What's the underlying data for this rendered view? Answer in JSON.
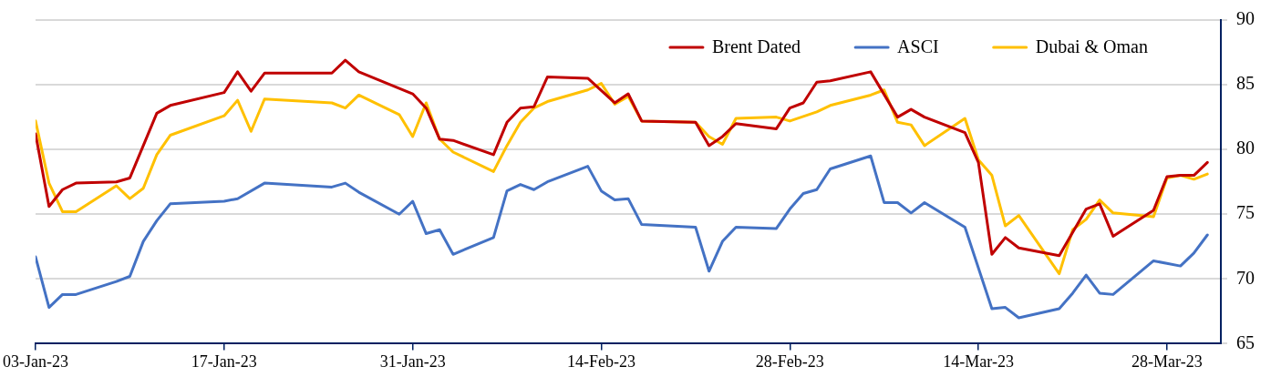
{
  "chart_data": {
    "type": "line",
    "xlim": [
      "--01-03",
      "--04-01"
    ],
    "xticks": [
      {
        "value": "--01-03",
        "label": "03-Jan-23"
      },
      {
        "value": "--01-17",
        "label": "17-Jan-23"
      },
      {
        "value": "--01-31",
        "label": "31-Jan-23"
      },
      {
        "value": "--02-14",
        "label": "14-Feb-23"
      },
      {
        "value": "--02-28",
        "label": "28-Feb-23"
      },
      {
        "value": "--03-14",
        "label": "14-Mar-23"
      },
      {
        "value": "--03-28",
        "label": "28-Mar-23"
      }
    ],
    "ylim": [
      65,
      90
    ],
    "yticks": [
      65,
      70,
      75,
      80,
      85,
      90
    ],
    "grid": "y",
    "legend": "top right",
    "marker": "none",
    "line_style": "solid",
    "series": [
      {
        "name": "Brent Dated",
        "color": "#c00000",
        "x": [
          "--01-03",
          "--01-04",
          "--01-05",
          "--01-06",
          "--01-09",
          "--01-10",
          "--01-12",
          "--01-13",
          "--01-17",
          "--01-18",
          "--01-19",
          "--01-20",
          "--01-25",
          "--01-26",
          "--01-27",
          "--01-31",
          "--02-01",
          "--02-02",
          "--02-03",
          "--02-06",
          "--02-07",
          "--02-08",
          "--02-09",
          "--02-10",
          "--02-13",
          "--02-15",
          "--02-16",
          "--02-17",
          "--02-21",
          "--02-22",
          "--02-23",
          "--02-24",
          "--02-27",
          "--02-28",
          "--03-01",
          "--03-02",
          "--03-03",
          "--03-06",
          "--03-08",
          "--03-09",
          "--03-10",
          "--03-13",
          "--03-14",
          "--03-15",
          "--03-16",
          "--03-17",
          "--03-20",
          "--03-22",
          "--03-23",
          "--03-24",
          "--03-27",
          "--03-28",
          "--03-29",
          "--03-30",
          "--03-31"
        ],
        "values": [
          81.2,
          75.6,
          76.9,
          77.4,
          77.5,
          77.8,
          82.8,
          83.4,
          84.4,
          86.0,
          84.5,
          85.9,
          85.9,
          86.9,
          86.0,
          84.3,
          83.2,
          80.8,
          80.7,
          79.6,
          82.1,
          83.2,
          83.3,
          85.6,
          85.5,
          83.6,
          84.3,
          82.2,
          82.1,
          80.3,
          81.0,
          82.0,
          81.6,
          83.2,
          83.6,
          85.2,
          85.3,
          86.0,
          82.5,
          83.1,
          82.5,
          81.3,
          79.0,
          71.9,
          73.2,
          72.4,
          71.8,
          75.4,
          75.8,
          73.3,
          75.3,
          77.9,
          78.0,
          78.0,
          79.0
        ]
      },
      {
        "name": "ASCI",
        "color": "#4472c4",
        "x": [
          "--01-03",
          "--01-04",
          "--01-05",
          "--01-06",
          "--01-09",
          "--01-10",
          "--01-11",
          "--01-12",
          "--01-13",
          "--01-17",
          "--01-18",
          "--01-20",
          "--01-25",
          "--01-26",
          "--01-27",
          "--01-30",
          "--01-31",
          "--02-01",
          "--02-02",
          "--02-03",
          "--02-06",
          "--02-07",
          "--02-08",
          "--02-09",
          "--02-10",
          "--02-13",
          "--02-14",
          "--02-15",
          "--02-16",
          "--02-17",
          "--02-21",
          "--02-22",
          "--02-23",
          "--02-24",
          "--02-27",
          "--02-28",
          "--03-01",
          "--03-02",
          "--03-03",
          "--03-06",
          "--03-07",
          "--03-08",
          "--03-09",
          "--03-10",
          "--03-13",
          "--03-15",
          "--03-16",
          "--03-17",
          "--03-20",
          "--03-21",
          "--03-22",
          "--03-23",
          "--03-24",
          "--03-27",
          "--03-28",
          "--03-29",
          "--03-30",
          "--03-31"
        ],
        "values": [
          71.7,
          67.8,
          68.8,
          68.8,
          69.8,
          70.2,
          72.9,
          74.5,
          75.8,
          76.0,
          76.2,
          77.4,
          77.1,
          77.4,
          76.7,
          75.0,
          76.0,
          73.5,
          73.8,
          71.9,
          73.2,
          76.8,
          77.3,
          76.9,
          77.5,
          78.7,
          76.8,
          76.1,
          76.2,
          74.2,
          74.0,
          70.6,
          72.9,
          74.0,
          73.9,
          75.4,
          76.6,
          76.9,
          78.5,
          79.5,
          75.9,
          75.9,
          75.1,
          75.9,
          74.0,
          67.7,
          67.8,
          67.0,
          67.7,
          68.9,
          70.3,
          68.9,
          68.8,
          71.4,
          71.2,
          71.0,
          72.0,
          73.4
        ]
      },
      {
        "name": "Dubai & Oman",
        "color": "#ffc000",
        "x": [
          "--01-03",
          "--01-04",
          "--01-05",
          "--01-06",
          "--01-09",
          "--01-10",
          "--01-11",
          "--01-12",
          "--01-13",
          "--01-17",
          "--01-18",
          "--01-19",
          "--01-20",
          "--01-25",
          "--01-26",
          "--01-27",
          "--01-30",
          "--01-31",
          "--02-01",
          "--02-02",
          "--02-03",
          "--02-06",
          "--02-07",
          "--02-08",
          "--02-09",
          "--02-10",
          "--02-13",
          "--02-14",
          "--02-15",
          "--02-16",
          "--02-17",
          "--02-21",
          "--02-22",
          "--02-23",
          "--02-24",
          "--02-27",
          "--02-28",
          "--03-02",
          "--03-03",
          "--03-06",
          "--03-07",
          "--03-08",
          "--03-09",
          "--03-10",
          "--03-13",
          "--03-14",
          "--03-15",
          "--03-16",
          "--03-17",
          "--03-20",
          "--03-21",
          "--03-22",
          "--03-23",
          "--03-24",
          "--03-27",
          "--03-28",
          "--03-29",
          "--03-30",
          "--03-31"
        ],
        "values": [
          82.2,
          77.4,
          75.2,
          75.2,
          77.2,
          76.2,
          77.0,
          79.6,
          81.1,
          82.6,
          83.8,
          81.4,
          83.9,
          83.6,
          83.2,
          84.2,
          82.7,
          81.0,
          83.6,
          80.8,
          79.8,
          78.3,
          80.3,
          82.1,
          83.2,
          83.7,
          84.6,
          85.1,
          83.5,
          84.1,
          82.2,
          82.1,
          81.0,
          80.4,
          82.4,
          82.5,
          82.2,
          82.9,
          83.4,
          84.2,
          84.6,
          82.1,
          81.9,
          80.3,
          82.4,
          79.2,
          78.0,
          74.1,
          74.9,
          70.4,
          73.8,
          74.6,
          76.1,
          75.1,
          74.8,
          77.8,
          78.0,
          77.7,
          78.1
        ]
      }
    ]
  }
}
